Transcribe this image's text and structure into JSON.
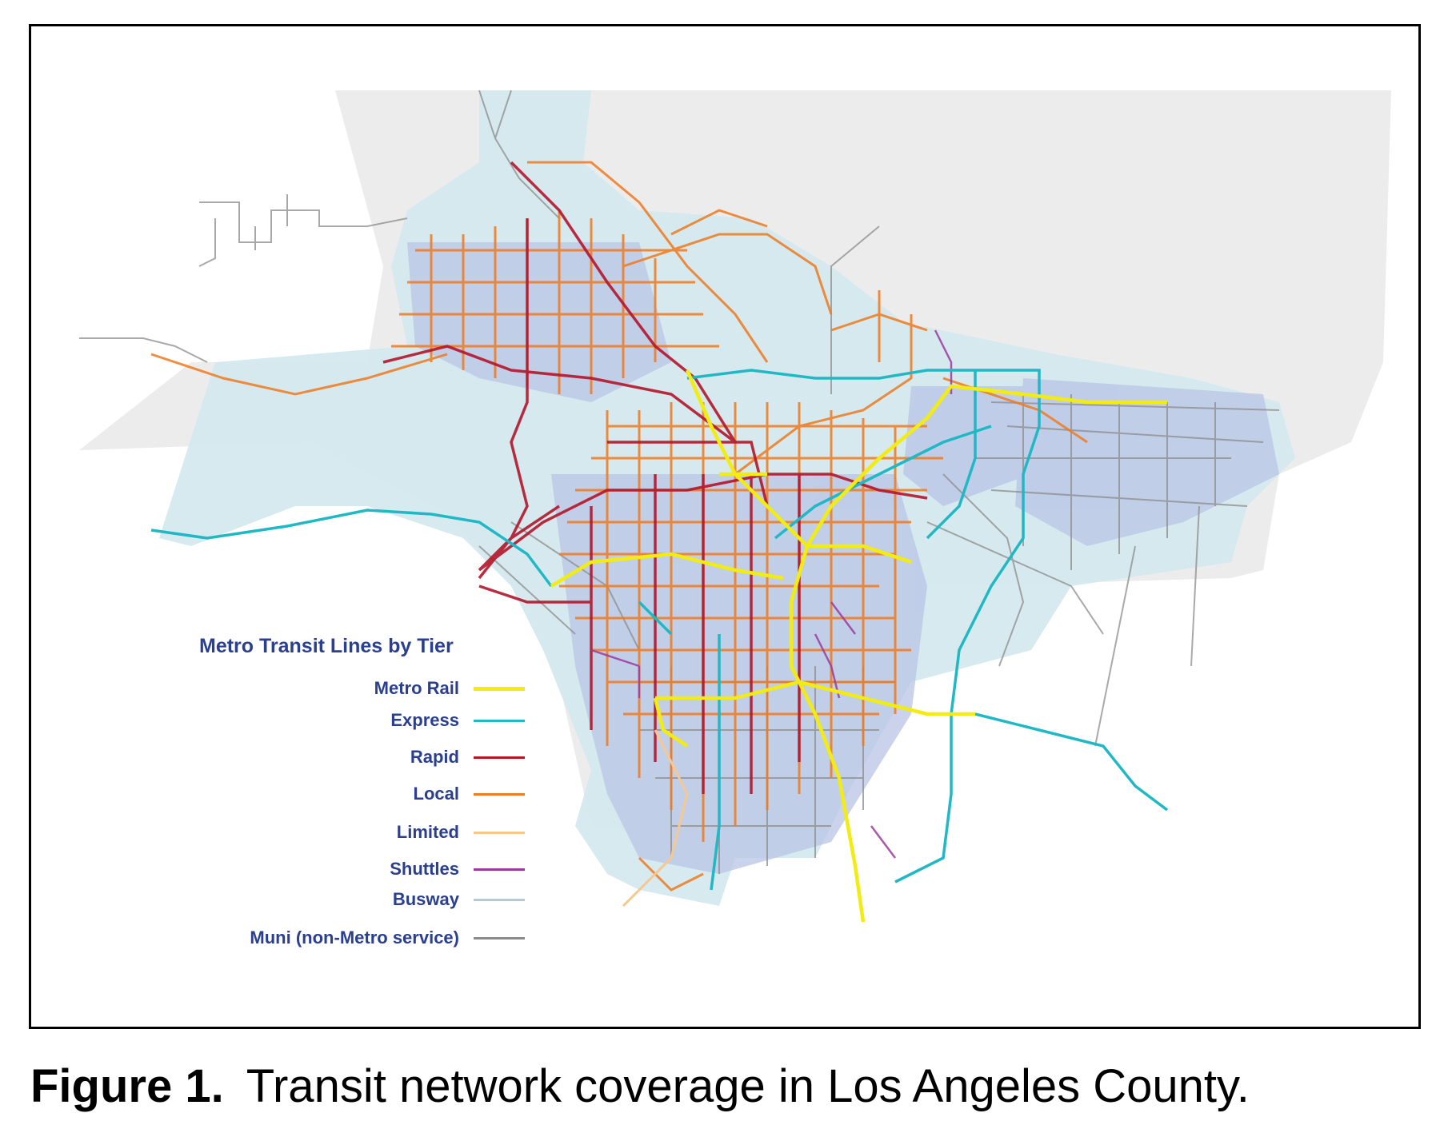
{
  "legend": {
    "title": "Metro Transit Lines by Tier",
    "items": [
      {
        "label": "Metro Rail",
        "color": "#f2ec10"
      },
      {
        "label": "Express",
        "color": "#1fb8c4"
      },
      {
        "label": "Rapid",
        "color": "#b3162b"
      },
      {
        "label": "Local",
        "color": "#f07a1e"
      },
      {
        "label": "Limited",
        "color": "#f6c890"
      },
      {
        "label": "Shuttles",
        "color": "#9a3c9c"
      },
      {
        "label": "Busway",
        "color": "#b8c9d1"
      },
      {
        "label": "Muni (non-Metro service)",
        "color": "#8c8c8c"
      }
    ]
  },
  "caption": {
    "label": "Figure 1.",
    "text": "Transit network coverage in Los Angeles County."
  },
  "colors": {
    "county_land": "#ececed",
    "service_area": "#d4e9ee",
    "dense_area": "#b9c4e6",
    "frame": "#000000"
  }
}
